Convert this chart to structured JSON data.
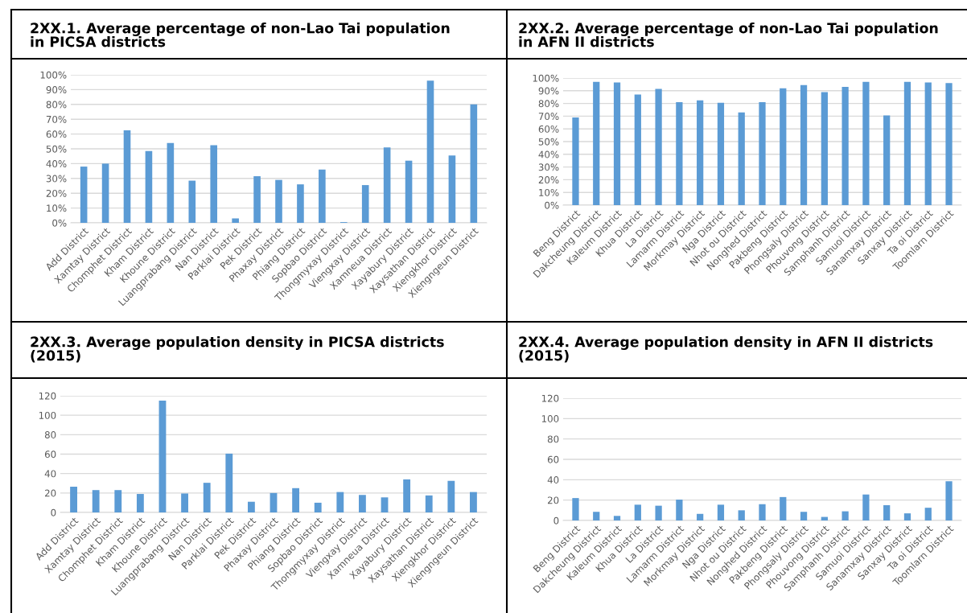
{
  "chart_data": [
    {
      "type": "bar",
      "title": "2XX.1. Average percentage of non-Lao Tai population\nin PICSA districts",
      "categories": [
        "Add District",
        "Xamtay District",
        "Chomphet District",
        "Kham District",
        "Khoune District",
        "Luangprabang District",
        "Nan District",
        "Parklai District",
        "Pek District",
        "Phaxay District",
        "Phiang District",
        "Sopbao District",
        "Thongmyxay District",
        "Viengxay District",
        "Xamneua District",
        "Xayabury District",
        "Xaysathan District",
        "Xiengkhor District",
        "Xiengngeun District"
      ],
      "values": [
        38,
        40,
        62.5,
        48.5,
        54,
        28.5,
        52.5,
        3,
        31.5,
        29,
        26,
        36,
        0.5,
        25.5,
        51,
        42,
        96,
        45.5,
        80
      ],
      "color": "#5b9bd5",
      "ylim": [
        0,
        100
      ],
      "yticks": [
        {
          "value": 0,
          "label": "0%"
        },
        {
          "value": 10,
          "label": "10%"
        },
        {
          "value": 20,
          "label": "20%"
        },
        {
          "value": 30,
          "label": "30%"
        },
        {
          "value": 40,
          "label": "40%"
        },
        {
          "value": 50,
          "label": "50%"
        },
        {
          "value": 60,
          "label": "60%"
        },
        {
          "value": 70,
          "label": "70%"
        },
        {
          "value": 80,
          "label": "80%"
        },
        {
          "value": 90,
          "label": "90%"
        },
        {
          "value": 100,
          "label": "100%"
        }
      ],
      "grid": "y"
    },
    {
      "type": "bar",
      "title": "2XX.2. Average percentage of non-Lao Tai population\nin AFN II districts",
      "categories": [
        "Beng District",
        "Dakcheung District",
        "Kaleum District",
        "Khua District",
        "La District",
        "Lamarm District",
        "Morkmay District",
        "Nga District",
        "Nhot ou District",
        "Nonghed District",
        "Pakbeng District",
        "Phongsaly District",
        "Phouvong District",
        "Samphanh District",
        "Samuoi District",
        "Sanamxay District",
        "Sanxay District",
        "Ta oi District",
        "Toomlarn District"
      ],
      "values": [
        69,
        97,
        96.5,
        87,
        91.5,
        81,
        82.5,
        80.5,
        73,
        81,
        92,
        94.5,
        89,
        93,
        97,
        70.5,
        97,
        96.5,
        96
      ],
      "color": "#5b9bd5",
      "ylim": [
        0,
        100
      ],
      "yticks": [
        {
          "value": 0,
          "label": "0%"
        },
        {
          "value": 10,
          "label": "10%"
        },
        {
          "value": 20,
          "label": "20%"
        },
        {
          "value": 30,
          "label": "30%"
        },
        {
          "value": 40,
          "label": "40%"
        },
        {
          "value": 50,
          "label": "50%"
        },
        {
          "value": 60,
          "label": "60%"
        },
        {
          "value": 70,
          "label": "70%"
        },
        {
          "value": 80,
          "label": "80%"
        },
        {
          "value": 90,
          "label": "90%"
        },
        {
          "value": 100,
          "label": "100%"
        }
      ],
      "grid": "y"
    },
    {
      "type": "bar",
      "title": "2XX.3. Average population density in PICSA districts\n(2015)",
      "categories": [
        "Add District",
        "Xamtay District",
        "Chomphet District",
        "Kham District",
        "Khoune District",
        "Luangprabang District",
        "Nan District",
        "Parklai District",
        "Pek District",
        "Phaxay District",
        "Phiang District",
        "Sopbao District",
        "Thongmyxay District",
        "Viengxay District",
        "Xamneua District",
        "Xayabury District",
        "Xaysathan District",
        "Xiengkhor District",
        "Xiengngeun District"
      ],
      "values": [
        26.5,
        23,
        23,
        19,
        115,
        19.5,
        30.5,
        60.5,
        11,
        20,
        25,
        10,
        21,
        18,
        15.5,
        34,
        17.5,
        32.5,
        21
      ],
      "color": "#5b9bd5",
      "ylim": [
        0,
        120
      ],
      "yticks": [
        0,
        20,
        40,
        60,
        80,
        100,
        120
      ],
      "grid": "y"
    },
    {
      "type": "bar",
      "title": "2XX.4. Average population density in AFN II districts\n(2015)",
      "categories": [
        "Beng District",
        "Dakcheung District",
        "Kaleum District",
        "Khua District",
        "La District",
        "Lamarm District",
        "Morkmay District",
        "Nga District",
        "Nhot ou District",
        "Nonghed District",
        "Pakbeng District",
        "Phongsaly District",
        "Phouvong District",
        "Samphanh District",
        "Samuoi District",
        "Sanamxay District",
        "Sanxay District",
        "Ta oi District",
        "Toomlarn District"
      ],
      "values": [
        22,
        8.5,
        4.5,
        15.5,
        14.5,
        20.5,
        6.5,
        15.5,
        10,
        16,
        23,
        8.5,
        3.5,
        9,
        25.5,
        15,
        7,
        12.5,
        38.5
      ],
      "color": "#5b9bd5",
      "ylim": [
        0,
        120
      ],
      "yticks": [
        0,
        20,
        40,
        60,
        80,
        100,
        120
      ],
      "grid": "y"
    }
  ]
}
